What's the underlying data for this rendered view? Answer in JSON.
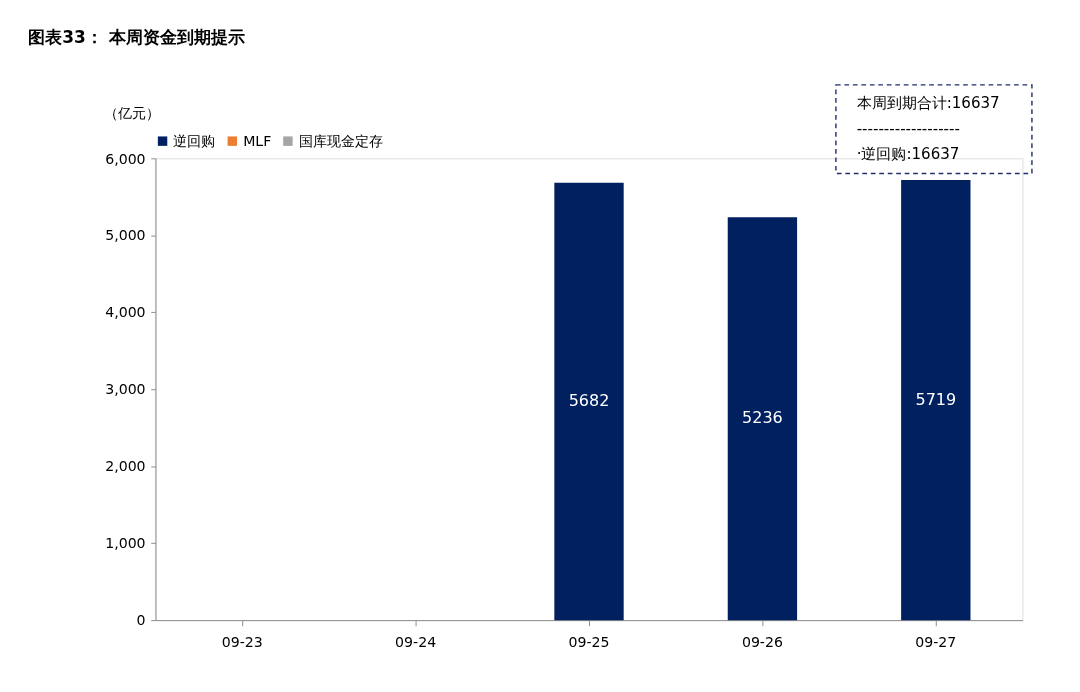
{
  "chart_data": {
    "type": "bar",
    "title": "图表33：  本周资金到期提示",
    "ylabel": "（亿元）",
    "categories": [
      "09-23",
      "09-24",
      "09-25",
      "09-26",
      "09-27"
    ],
    "series": [
      {
        "name": "逆回购",
        "color": "#002060",
        "values": [
          0,
          0,
          5682,
          5236,
          5719
        ],
        "value_labels": [
          null,
          null,
          "5682",
          "5236",
          "5719"
        ]
      },
      {
        "name": "MLF",
        "color": "#ed7d31",
        "values": [
          null,
          null,
          null,
          null,
          null
        ]
      },
      {
        "name": "国库现金定存",
        "color": "#a5a5a5",
        "values": [
          null,
          null,
          null,
          null,
          null
        ]
      }
    ],
    "stacked": true,
    "ylim": [
      0,
      6000
    ],
    "yticks": [
      {
        "value": 0,
        "label": "0"
      },
      {
        "value": 1000,
        "label": "1,000"
      },
      {
        "value": 2000,
        "label": "2,000"
      },
      {
        "value": 3000,
        "label": "3,000"
      },
      {
        "value": 4000,
        "label": "4,000"
      },
      {
        "value": 5000,
        "label": "5,000"
      },
      {
        "value": 6000,
        "label": "6,000"
      }
    ],
    "grid": false,
    "legend": "top",
    "annotations": [
      "本周到期合计:16637",
      "-------------------",
      "·逆回购:16637"
    ]
  }
}
